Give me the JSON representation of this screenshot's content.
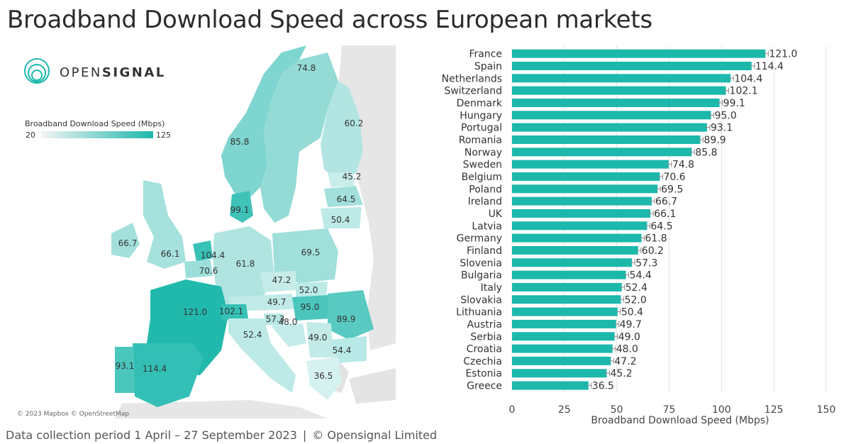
{
  "title": "Broadband Download Speed across European markets",
  "footer": {
    "period": "Data collection period 1 April – 27 September 2023",
    "separator": "|",
    "copyright": "© Opensignal Limited"
  },
  "logo": {
    "text_light": "OPEN",
    "text_bold": "SIGNAL"
  },
  "map": {
    "legend_title": "Broadband Download Speed (Mbps)",
    "legend_min": "20",
    "legend_max": "125",
    "attribution": "© 2023 Mapbox © OpenStreetMap",
    "colors": {
      "low": "#e9f7f6",
      "high": "#1cb8ac",
      "land": "#e8e8e8"
    },
    "labels": [
      {
        "country": "Norway",
        "value": "85.8"
      },
      {
        "country": "Sweden",
        "value": "74.8"
      },
      {
        "country": "Finland",
        "value": "60.2"
      },
      {
        "country": "Estonia",
        "value": "45.2"
      },
      {
        "country": "Latvia",
        "value": "64.5"
      },
      {
        "country": "Lithuania",
        "value": "50.4"
      },
      {
        "country": "Denmark",
        "value": "99.1"
      },
      {
        "country": "Ireland",
        "value": "66.7"
      },
      {
        "country": "UK",
        "value": "66.1"
      },
      {
        "country": "Netherlands",
        "value": "104.4"
      },
      {
        "country": "Belgium",
        "value": "70.6"
      },
      {
        "country": "Germany",
        "value": "61.8"
      },
      {
        "country": "Poland",
        "value": "69.5"
      },
      {
        "country": "Czechia",
        "value": "47.2"
      },
      {
        "country": "Slovakia",
        "value": "52.0"
      },
      {
        "country": "Austria",
        "value": "49.7"
      },
      {
        "country": "Hungary",
        "value": "95.0"
      },
      {
        "country": "Romania",
        "value": "89.9"
      },
      {
        "country": "France",
        "value": "121.0"
      },
      {
        "country": "Switzerland",
        "value": "102.1"
      },
      {
        "country": "Slovenia",
        "value": "57.3"
      },
      {
        "country": "Croatia",
        "value": "48.0"
      },
      {
        "country": "Serbia",
        "value": "49.0"
      },
      {
        "country": "Bulgaria",
        "value": "54.4"
      },
      {
        "country": "Italy",
        "value": "52.4"
      },
      {
        "country": "Greece",
        "value": "36.5"
      },
      {
        "country": "Portugal",
        "value": "93.1"
      },
      {
        "country": "Spain",
        "value": "114.4"
      }
    ]
  },
  "chart_data": {
    "type": "bar",
    "orientation": "horizontal",
    "categories": [
      "France",
      "Spain",
      "Netherlands",
      "Switzerland",
      "Denmark",
      "Hungary",
      "Portugal",
      "Romania",
      "Norway",
      "Sweden",
      "Belgium",
      "Poland",
      "Ireland",
      "UK",
      "Latvia",
      "Germany",
      "Finland",
      "Slovenia",
      "Bulgaria",
      "Italy",
      "Slovakia",
      "Lithuania",
      "Austria",
      "Serbia",
      "Croatia",
      "Czechia",
      "Estonia",
      "Greece"
    ],
    "values": [
      121.0,
      114.4,
      104.4,
      102.1,
      99.1,
      95.0,
      93.1,
      89.9,
      85.8,
      74.8,
      70.6,
      69.5,
      66.7,
      66.1,
      64.5,
      61.8,
      60.2,
      57.3,
      54.4,
      52.4,
      52.0,
      50.4,
      49.7,
      49.0,
      48.0,
      47.2,
      45.2,
      36.5
    ],
    "value_labels": [
      "121.0",
      "114.4",
      "104.4",
      "102.1",
      "99.1",
      "95.0",
      "93.1",
      "89.9",
      "85.8",
      "74.8",
      "70.6",
      "69.5",
      "66.7",
      "66.1",
      "64.5",
      "61.8",
      "60.2",
      "57.3",
      "54.4",
      "52.4",
      "52.0",
      "50.4",
      "49.7",
      "49.0",
      "48.0",
      "47.2",
      "45.2",
      "36.5"
    ],
    "xlabel": "Broadband Download Speed (Mbps)",
    "xlim": [
      0,
      150
    ],
    "xticks": [
      "0",
      "25",
      "50",
      "75",
      "100",
      "125",
      "150"
    ],
    "grid": true,
    "error_bars": true,
    "bar_color": "#1cb8ac"
  }
}
